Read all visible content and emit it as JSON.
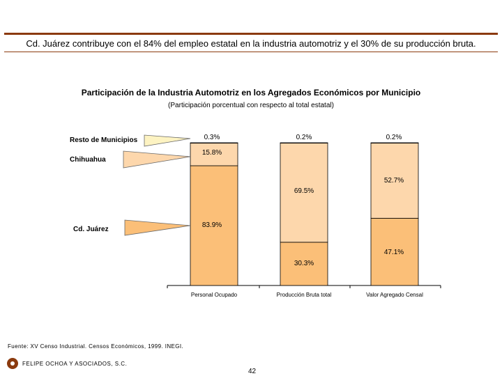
{
  "headline": "Cd. Juárez contribuye con el 84% del empleo estatal en la industria automotriz y el 30% de su producción bruta.",
  "chart_data": {
    "type": "bar",
    "stacked": true,
    "percent": true,
    "title": "Participación de la Industria Automotriz en los Agregados Económicos por Municipio",
    "subtitle": "(Participación porcentual con respecto al total estatal)",
    "categories": [
      "Personal Ocupado",
      "Producción Bruta total",
      "Valor Agregado Censal"
    ],
    "series": [
      {
        "name": "Cd. Juárez",
        "values": [
          83.9,
          30.3,
          47.1
        ],
        "labels": [
          "83.9%",
          "30.3%",
          "47.1%"
        ],
        "color": "#fbbf78"
      },
      {
        "name": "Chihuahua",
        "values": [
          15.8,
          69.5,
          52.7
        ],
        "labels": [
          "15.8%",
          "69.5%",
          "52.7%"
        ],
        "color": "#fdd7ac"
      },
      {
        "name": "Resto de Municipios",
        "values": [
          0.3,
          0.2,
          0.2
        ],
        "labels": [
          "0.3%",
          "0.2%",
          "0.2%"
        ],
        "color": "#fdf3c2"
      }
    ],
    "ylim": [
      0,
      100
    ],
    "xlabel": "",
    "ylabel": "",
    "legend": "left"
  },
  "source": "Fuente: XV Censo Industrial. Censos Económicos, 1999. INEGI.",
  "company": "FELIPE OCHOA Y ASOCIADOS, S.C.",
  "page_number": "42"
}
